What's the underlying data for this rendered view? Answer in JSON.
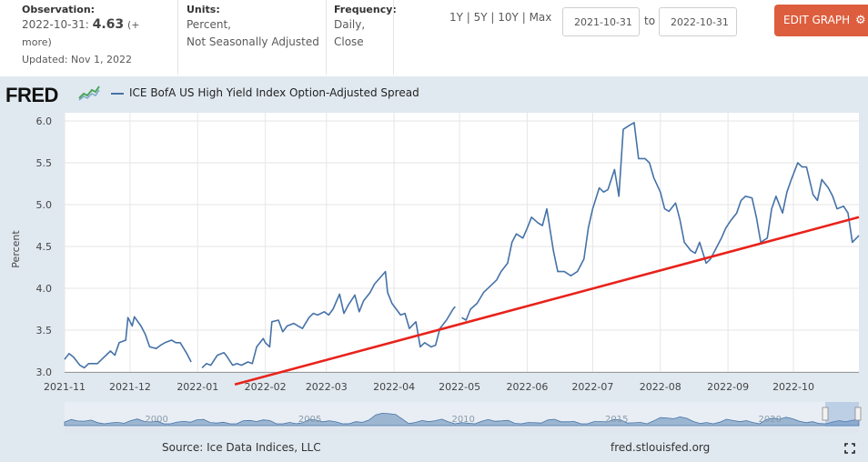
{
  "observation": {
    "label": "Observation:",
    "date": "2022-10-31:",
    "value": "4.63",
    "more": "(+ more)",
    "updated": "Updated: Nov 1, 2022"
  },
  "units": {
    "label": "Units:",
    "line1": "Percent,",
    "line2": "Not Seasonally Adjusted"
  },
  "frequency": {
    "label": "Frequency:",
    "line1": "Daily,",
    "line2": "Close"
  },
  "ranges": [
    "1Y",
    "5Y",
    "10Y",
    "Max"
  ],
  "date_from": "2021-10-31",
  "date_to_label": "to",
  "date_to": "2022-10-31",
  "edit_button": "EDIT GRAPH",
  "logo_text": "FRED",
  "source": "Source: Ice Data Indices, LLC",
  "fred_link": "fred.stlouisfed.org",
  "colors": {
    "series": "#4572a7",
    "trendline": "#e8221b",
    "button": "#dd5e3e",
    "background": "#e1e9f0"
  },
  "chart_data": {
    "type": "line",
    "title": "",
    "xlabel": "",
    "ylabel": "Percent",
    "ylim": [
      3.0,
      6.0
    ],
    "yticks": [
      "3.0",
      "3.5",
      "4.0",
      "4.5",
      "5.0",
      "5.5",
      "6.0"
    ],
    "xticks": [
      "2021-11",
      "2021-12",
      "2022-01",
      "2022-02",
      "2022-03",
      "2022-04",
      "2022-05",
      "2022-06",
      "2022-07",
      "2022-08",
      "2022-09",
      "2022-10"
    ],
    "series": [
      {
        "name": "ICE BofA US High Yield Index Option-Adjusted Spread",
        "points": [
          [
            "2021-11-01",
            3.15
          ],
          [
            "2021-11-03",
            3.22
          ],
          [
            "2021-11-05",
            3.18
          ],
          [
            "2021-11-08",
            3.08
          ],
          [
            "2021-11-10",
            3.05
          ],
          [
            "2021-11-12",
            3.1
          ],
          [
            "2021-11-16",
            3.1
          ],
          [
            "2021-11-18",
            3.15
          ],
          [
            "2021-11-22",
            3.25
          ],
          [
            "2021-11-24",
            3.2
          ],
          [
            "2021-11-26",
            3.35
          ],
          [
            "2021-11-29",
            3.38
          ],
          [
            "2021-11-30",
            3.65
          ],
          [
            "2021-12-01",
            3.6
          ],
          [
            "2021-12-02",
            3.55
          ],
          [
            "2021-12-03",
            3.66
          ],
          [
            "2021-12-06",
            3.55
          ],
          [
            "2021-12-08",
            3.45
          ],
          [
            "2021-12-10",
            3.3
          ],
          [
            "2021-12-13",
            3.28
          ],
          [
            "2021-12-15",
            3.32
          ],
          [
            "2021-12-17",
            3.35
          ],
          [
            "2021-12-20",
            3.38
          ],
          [
            "2021-12-22",
            3.35
          ],
          [
            "2021-12-24",
            3.35
          ],
          [
            "2021-12-27",
            3.22
          ],
          [
            "2021-12-29",
            3.12
          ],
          [
            "2022-01-03",
            3.05
          ],
          [
            "2022-01-05",
            3.1
          ],
          [
            "2022-01-07",
            3.08
          ],
          [
            "2022-01-10",
            3.2
          ],
          [
            "2022-01-13",
            3.23
          ],
          [
            "2022-01-14",
            3.2
          ],
          [
            "2022-01-17",
            3.08
          ],
          [
            "2022-01-19",
            3.1
          ],
          [
            "2022-01-21",
            3.08
          ],
          [
            "2022-01-24",
            3.12
          ],
          [
            "2022-01-26",
            3.1
          ],
          [
            "2022-01-28",
            3.3
          ],
          [
            "2022-01-31",
            3.4
          ],
          [
            "2022-02-01",
            3.35
          ],
          [
            "2022-02-03",
            3.3
          ],
          [
            "2022-02-04",
            3.6
          ],
          [
            "2022-02-07",
            3.62
          ],
          [
            "2022-02-09",
            3.48
          ],
          [
            "2022-02-11",
            3.55
          ],
          [
            "2022-02-14",
            3.58
          ],
          [
            "2022-02-16",
            3.55
          ],
          [
            "2022-02-18",
            3.52
          ],
          [
            "2022-02-21",
            3.65
          ],
          [
            "2022-02-23",
            3.7
          ],
          [
            "2022-02-25",
            3.68
          ],
          [
            "2022-02-28",
            3.72
          ],
          [
            "2022-03-02",
            3.68
          ],
          [
            "2022-03-04",
            3.75
          ],
          [
            "2022-03-07",
            3.93
          ],
          [
            "2022-03-09",
            3.7
          ],
          [
            "2022-03-11",
            3.8
          ],
          [
            "2022-03-14",
            3.92
          ],
          [
            "2022-03-16",
            3.72
          ],
          [
            "2022-03-18",
            3.85
          ],
          [
            "2022-03-21",
            3.95
          ],
          [
            "2022-03-23",
            4.05
          ],
          [
            "2022-03-28",
            4.2
          ],
          [
            "2022-03-29",
            3.95
          ],
          [
            "2022-03-31",
            3.82
          ],
          [
            "2022-04-04",
            3.68
          ],
          [
            "2022-04-06",
            3.7
          ],
          [
            "2022-04-08",
            3.52
          ],
          [
            "2022-04-11",
            3.6
          ],
          [
            "2022-04-13",
            3.3
          ],
          [
            "2022-04-15",
            3.35
          ],
          [
            "2022-04-18",
            3.3
          ],
          [
            "2022-04-20",
            3.32
          ],
          [
            "2022-04-22",
            3.52
          ],
          [
            "2022-04-25",
            3.62
          ],
          [
            "2022-04-28",
            3.75
          ],
          [
            "2022-04-29",
            3.78
          ],
          [
            "2022-05-02",
            3.65
          ],
          [
            "2022-05-04",
            3.62
          ],
          [
            "2022-05-06",
            3.75
          ],
          [
            "2022-05-09",
            3.82
          ],
          [
            "2022-05-12",
            3.95
          ],
          [
            "2022-05-16",
            4.05
          ],
          [
            "2022-05-18",
            4.1
          ],
          [
            "2022-05-20",
            4.2
          ],
          [
            "2022-05-23",
            4.3
          ],
          [
            "2022-05-25",
            4.55
          ],
          [
            "2022-05-27",
            4.65
          ],
          [
            "2022-05-30",
            4.6
          ],
          [
            "2022-06-01",
            4.72
          ],
          [
            "2022-06-03",
            4.85
          ],
          [
            "2022-06-06",
            4.78
          ],
          [
            "2022-06-08",
            4.75
          ],
          [
            "2022-06-10",
            4.95
          ],
          [
            "2022-06-13",
            4.45
          ],
          [
            "2022-06-15",
            4.2
          ],
          [
            "2022-06-18",
            4.2
          ],
          [
            "2022-06-21",
            4.15
          ],
          [
            "2022-06-24",
            4.2
          ],
          [
            "2022-06-27",
            4.35
          ],
          [
            "2022-06-29",
            4.72
          ],
          [
            "2022-07-01",
            4.95
          ],
          [
            "2022-07-04",
            5.2
          ],
          [
            "2022-07-06",
            5.15
          ],
          [
            "2022-07-08",
            5.18
          ],
          [
            "2022-07-11",
            5.42
          ],
          [
            "2022-07-13",
            5.1
          ],
          [
            "2022-07-15",
            5.9
          ],
          [
            "2022-07-18",
            5.95
          ],
          [
            "2022-07-20",
            5.98
          ],
          [
            "2022-07-22",
            5.55
          ],
          [
            "2022-07-25",
            5.55
          ],
          [
            "2022-07-27",
            5.5
          ],
          [
            "2022-07-29",
            5.32
          ],
          [
            "2022-08-01",
            5.15
          ],
          [
            "2022-08-03",
            4.95
          ],
          [
            "2022-08-05",
            4.92
          ],
          [
            "2022-08-08",
            5.02
          ],
          [
            "2022-08-10",
            4.82
          ],
          [
            "2022-08-12",
            4.55
          ],
          [
            "2022-08-15",
            4.45
          ],
          [
            "2022-08-17",
            4.42
          ],
          [
            "2022-08-19",
            4.55
          ],
          [
            "2022-08-22",
            4.3
          ],
          [
            "2022-08-24",
            4.35
          ],
          [
            "2022-08-26",
            4.45
          ],
          [
            "2022-08-29",
            4.6
          ],
          [
            "2022-08-31",
            4.72
          ],
          [
            "2022-09-02",
            4.8
          ],
          [
            "2022-09-05",
            4.9
          ],
          [
            "2022-09-07",
            5.05
          ],
          [
            "2022-09-09",
            5.1
          ],
          [
            "2022-09-12",
            5.08
          ],
          [
            "2022-09-14",
            4.85
          ],
          [
            "2022-09-16",
            4.55
          ],
          [
            "2022-09-19",
            4.6
          ],
          [
            "2022-09-21",
            4.95
          ],
          [
            "2022-09-23",
            5.1
          ],
          [
            "2022-09-26",
            4.9
          ],
          [
            "2022-09-28",
            5.15
          ],
          [
            "2022-09-30",
            5.3
          ],
          [
            "2022-10-03",
            5.5
          ],
          [
            "2022-10-05",
            5.45
          ],
          [
            "2022-10-07",
            5.45
          ],
          [
            "2022-10-10",
            5.12
          ],
          [
            "2022-10-12",
            5.05
          ],
          [
            "2022-10-14",
            5.3
          ],
          [
            "2022-10-17",
            5.2
          ],
          [
            "2022-10-19",
            5.1
          ],
          [
            "2022-10-21",
            4.95
          ],
          [
            "2022-10-24",
            4.98
          ],
          [
            "2022-10-26",
            4.9
          ],
          [
            "2022-10-28",
            4.55
          ],
          [
            "2022-10-31",
            4.63
          ]
        ],
        "gaps_after": [
          "2021-12-29",
          "2022-04-29"
        ]
      }
    ],
    "annotation": {
      "type": "trendline",
      "from": [
        "2022-01-18",
        2.85
      ],
      "to": [
        "2022-10-31",
        4.85
      ]
    },
    "navigator": {
      "labels": [
        "2000",
        "2005",
        "2010",
        "2015",
        "2020"
      ]
    }
  }
}
